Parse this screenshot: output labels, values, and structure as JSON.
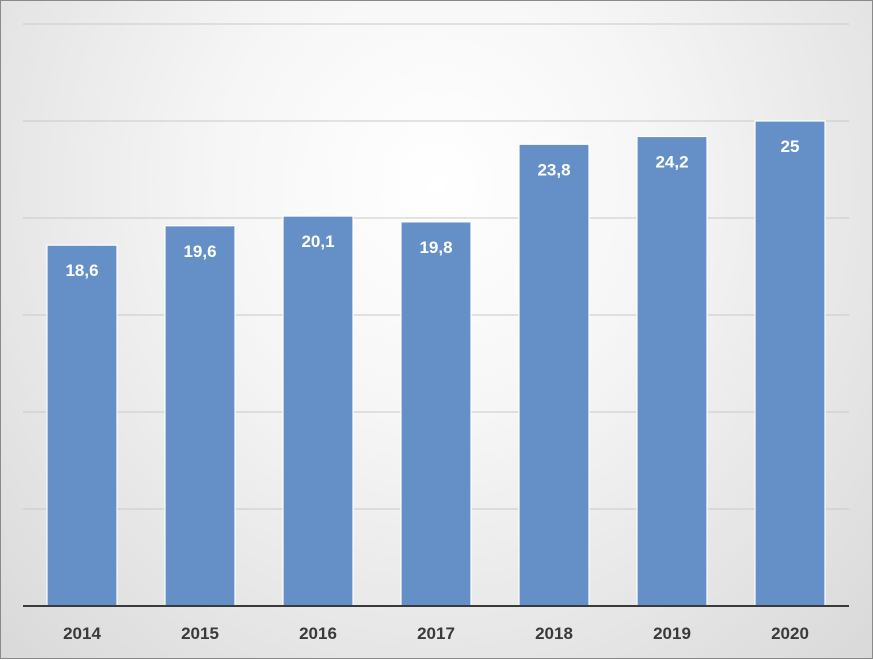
{
  "chart_data": {
    "type": "bar",
    "categories": [
      "2014",
      "2015",
      "2016",
      "2017",
      "2018",
      "2019",
      "2020"
    ],
    "values": [
      18.6,
      19.6,
      20.1,
      19.8,
      23.8,
      24.2,
      25
    ],
    "data_labels": [
      "18,6",
      "19,6",
      "20,1",
      "19,8",
      "23,8",
      "24,2",
      "25"
    ],
    "title": "",
    "xlabel": "",
    "ylabel": "",
    "ylim": [
      0,
      30
    ],
    "gridlines": [
      5,
      10,
      15,
      20,
      25,
      30
    ],
    "grid": true,
    "legend": "none",
    "bar_color": "#6490c7"
  }
}
